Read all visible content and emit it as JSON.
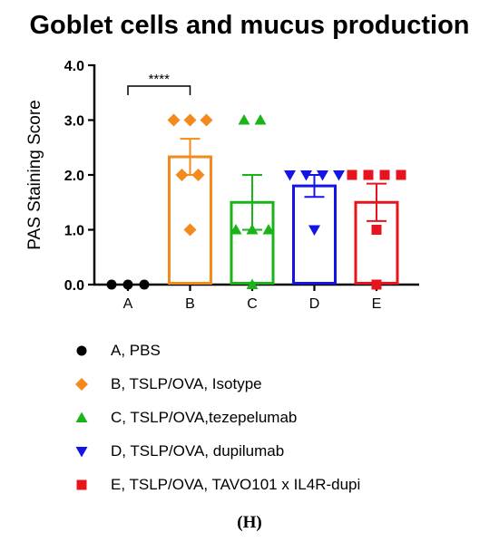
{
  "panel_label": "(H)",
  "chart_data": {
    "type": "bar",
    "title": "Goblet cells and mucus production",
    "ylabel": "PAS Staining Score",
    "xlabel": "",
    "ylim": [
      0,
      4
    ],
    "yticks": [
      "0.0",
      "1.0",
      "2.0",
      "3.0",
      "4.0"
    ],
    "categories": [
      "A",
      "B",
      "C",
      "D",
      "E"
    ],
    "means": [
      0,
      2.33,
      1.5,
      1.8,
      1.5
    ],
    "sem": [
      0,
      0.33,
      0.5,
      0.2,
      0.34
    ],
    "points": [
      [
        0,
        0,
        0
      ],
      [
        3,
        3,
        3,
        2,
        2,
        1
      ],
      [
        3,
        3,
        1,
        1,
        1,
        0
      ],
      [
        2,
        2,
        2,
        2,
        1
      ],
      [
        2,
        2,
        2,
        2,
        1,
        0
      ]
    ],
    "colors": [
      "#000000",
      "#f28a1c",
      "#1ab31a",
      "#1414e6",
      "#e6141c"
    ],
    "markers": [
      "circle",
      "diamond",
      "triangle-up",
      "triangle-down",
      "square"
    ],
    "significance": {
      "from": "A",
      "to": "B",
      "label": "****"
    },
    "legend": [
      "A, PBS",
      "B, TSLP/OVA, Isotype",
      "C, TSLP/OVA,tezepelumab",
      "D, TSLP/OVA, dupilumab",
      "E, TSLP/OVA, TAVO101 x IL4R-dupi"
    ]
  }
}
